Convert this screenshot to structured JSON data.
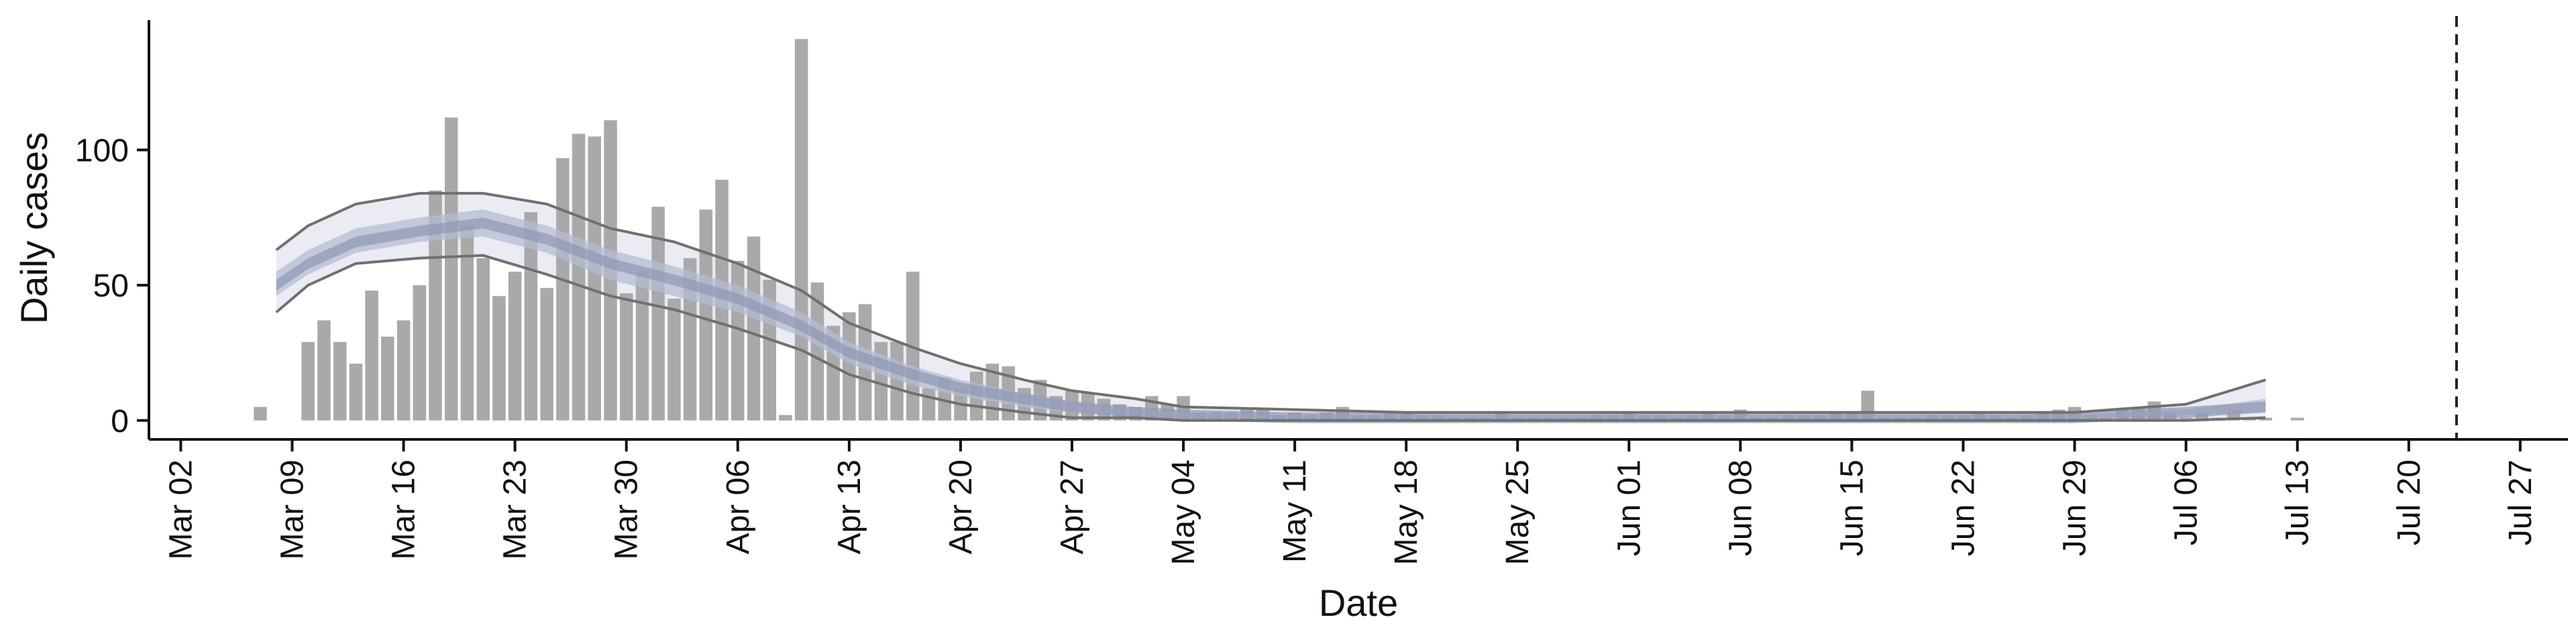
{
  "chart_data": {
    "type": "bar",
    "title": "",
    "xlabel": "Date",
    "ylabel": "Daily cases",
    "x_ticks": [
      "Mar 02",
      "Mar 09",
      "Mar 16",
      "Mar 23",
      "Mar 30",
      "Apr 06",
      "Apr 13",
      "Apr 20",
      "Apr 27",
      "May 04",
      "May 11",
      "May 18",
      "May 25",
      "Jun 01",
      "Jun 08",
      "Jun 15",
      "Jun 22",
      "Jun 29",
      "Jul 06",
      "Jul 13",
      "Jul 20",
      "Jul 27"
    ],
    "y_ticks": [
      0,
      50,
      100
    ],
    "ylim": [
      -7,
      148
    ],
    "xlim": [
      "2020-02-29",
      "2020-07-30"
    ],
    "grid": false,
    "bars": {
      "name": "Reported daily cases",
      "color": "#a9a9a9",
      "start_date": "2020-03-07",
      "values": [
        5,
        0,
        0,
        29,
        37,
        29,
        21,
        48,
        31,
        37,
        50,
        85,
        112,
        72,
        60,
        46,
        55,
        77,
        49,
        97,
        106,
        105,
        111,
        47,
        55,
        79,
        45,
        60,
        78,
        89,
        59,
        68,
        52,
        2,
        141,
        51,
        35,
        40,
        43,
        29,
        29,
        55,
        12,
        16,
        12,
        18,
        21,
        20,
        12,
        15,
        9,
        11,
        10,
        8,
        6,
        5,
        9,
        6,
        9,
        3,
        3,
        3,
        4,
        4,
        2,
        3,
        2,
        3,
        5,
        2,
        2,
        3,
        3,
        2,
        2,
        1,
        1,
        1,
        3,
        1,
        1,
        1,
        1,
        1,
        2,
        2,
        3,
        2,
        2,
        1,
        2,
        3,
        2,
        4,
        1,
        1,
        2,
        2,
        2,
        3,
        3,
        11,
        1,
        1,
        1,
        2,
        2,
        2,
        3,
        2,
        1,
        2,
        3,
        4,
        5,
        2,
        1,
        4,
        5,
        7,
        3,
        1,
        3,
        1,
        4,
        1,
        1,
        0,
        1
      ]
    },
    "projection": {
      "start_date": "2020-03-08",
      "end_date": "2020-07-11",
      "anchor_dates": [
        "2020-03-08",
        "2020-03-10",
        "2020-03-13",
        "2020-03-17",
        "2020-03-21",
        "2020-03-25",
        "2020-03-29",
        "2020-04-02",
        "2020-04-06",
        "2020-04-10",
        "2020-04-13",
        "2020-04-17",
        "2020-04-20",
        "2020-04-24",
        "2020-04-27",
        "2020-05-01",
        "2020-05-04",
        "2020-05-11",
        "2020-05-18",
        "2020-06-01",
        "2020-06-15",
        "2020-06-29",
        "2020-07-06",
        "2020-07-11"
      ],
      "median": [
        50,
        58,
        66,
        70,
        73,
        67,
        58,
        52,
        45,
        35,
        25,
        17,
        12,
        8,
        5,
        3,
        2,
        1,
        1,
        1,
        1,
        1,
        3,
        5
      ],
      "inner_band": {
        "lower": [
          46,
          54,
          62,
          66,
          68,
          62,
          52,
          46,
          40,
          31,
          21,
          13,
          9,
          5,
          3,
          2,
          1,
          1,
          1,
          1,
          1,
          1,
          2,
          3
        ],
        "upper": [
          55,
          63,
          71,
          75,
          78,
          72,
          63,
          57,
          50,
          40,
          29,
          20,
          15,
          10,
          7,
          4,
          3,
          2,
          2,
          2,
          2,
          2,
          4,
          8
        ]
      },
      "outer_band": {
        "lower": [
          40,
          50,
          58,
          60,
          61,
          54,
          46,
          41,
          34,
          26,
          17,
          10,
          6,
          3,
          1,
          1,
          0,
          0,
          0,
          0,
          0,
          0,
          0,
          1
        ],
        "upper": [
          63,
          72,
          80,
          84,
          84,
          80,
          71,
          66,
          58,
          48,
          36,
          27,
          21,
          15,
          11,
          8,
          5,
          4,
          3,
          3,
          3,
          3,
          6,
          15
        ]
      },
      "outer_color": "#e6e8f1",
      "inner_color": "#b5bcd2",
      "median_color": "#8e97b5",
      "line_color": "#707070"
    },
    "vline": {
      "date": "2020-07-23",
      "style": "dashed",
      "color": "#222222"
    }
  }
}
